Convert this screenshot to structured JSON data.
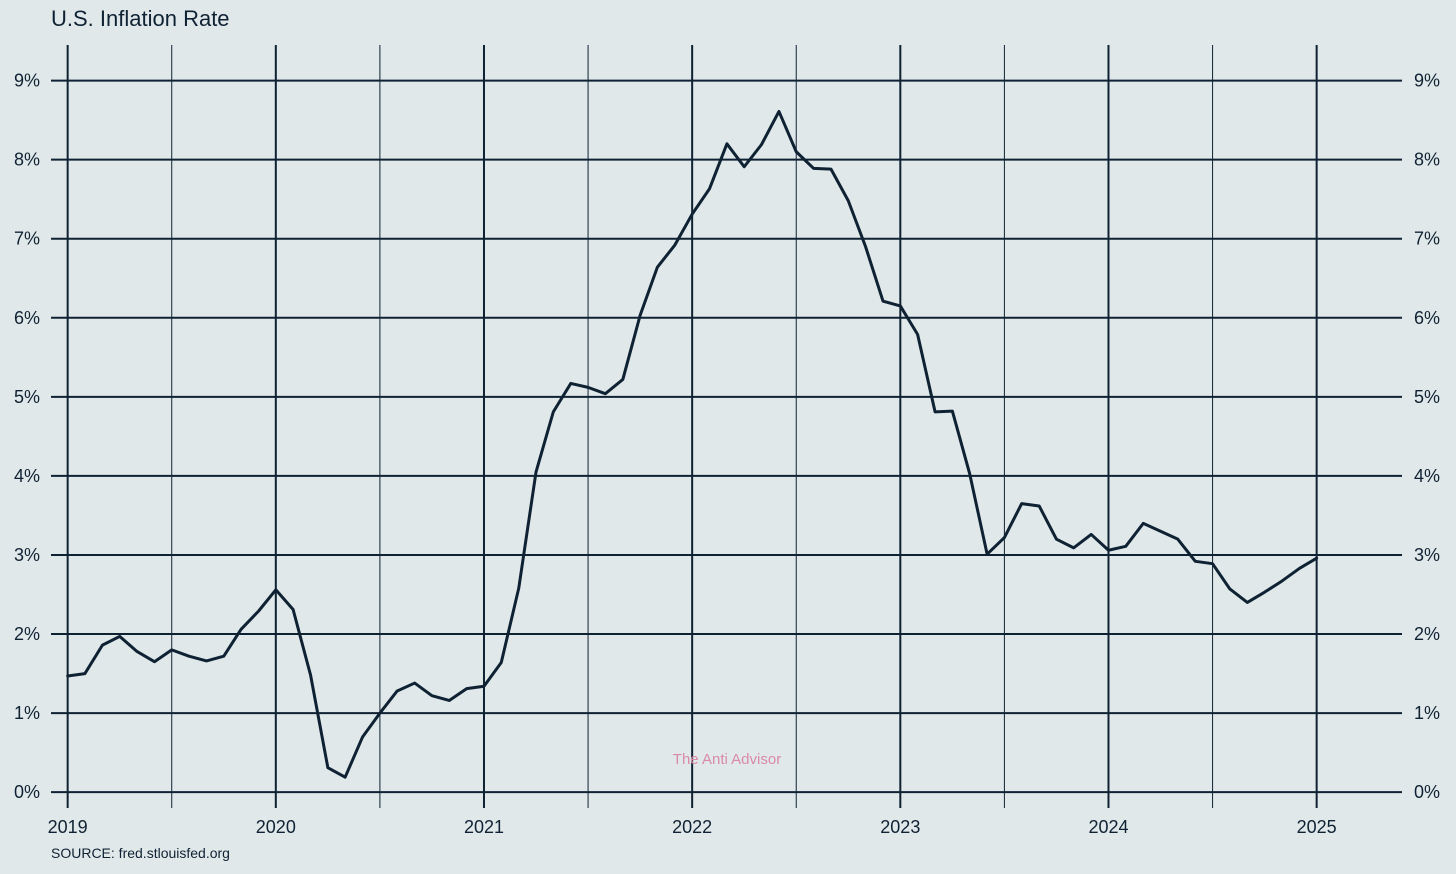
{
  "header": {
    "title": "U.S. Inflation Rate"
  },
  "footer": {
    "source": "SOURCE: fred.stlouisfed.org"
  },
  "watermark": "The Anti Advisor",
  "colors": {
    "background": "#e1e8ea",
    "line": "#0f2233",
    "watermark": "#d98aa8"
  },
  "chart_data": {
    "type": "line",
    "title": "U.S. Inflation Rate",
    "xlabel": "",
    "ylabel": "",
    "xlim": [
      2018.92,
      2025.41
    ],
    "ylim": [
      -0.2,
      9.45
    ],
    "y_ticks": [
      0,
      1,
      2,
      3,
      4,
      5,
      6,
      7,
      8,
      9
    ],
    "y_tick_labels": [
      "0%",
      "1%",
      "2%",
      "3%",
      "4%",
      "5%",
      "6%",
      "7%",
      "8%",
      "9%"
    ],
    "x_ticks": [
      2019,
      2020,
      2021,
      2022,
      2023,
      2024,
      2025
    ],
    "x_tick_labels": [
      "2019",
      "2020",
      "2021",
      "2022",
      "2023",
      "2024",
      "2025"
    ],
    "minor_x_gridlines": [
      2019.5,
      2020.5,
      2021.5,
      2022.5,
      2023.5,
      2024.5
    ],
    "grid": true,
    "y_axis_both_sides": true,
    "series": [
      {
        "x": [
          2019.0,
          2019.083,
          2019.167,
          2019.25,
          2019.333,
          2019.417,
          2019.5,
          2019.583,
          2019.667,
          2019.75,
          2019.833,
          2019.917,
          2020.0,
          2020.083,
          2020.167,
          2020.25,
          2020.333,
          2020.417,
          2020.5,
          2020.583,
          2020.667,
          2020.75,
          2020.833,
          2020.917,
          2021.0,
          2021.083,
          2021.167,
          2021.25,
          2021.333,
          2021.417,
          2021.5,
          2021.583,
          2021.667,
          2021.75,
          2021.833,
          2021.917,
          2022.0,
          2022.083,
          2022.167,
          2022.25,
          2022.333,
          2022.417,
          2022.5,
          2022.583,
          2022.667,
          2022.75,
          2022.833,
          2022.917,
          2023.0,
          2023.083,
          2023.167,
          2023.25,
          2023.333,
          2023.417,
          2023.5,
          2023.583,
          2023.667,
          2023.75,
          2023.833,
          2023.917,
          2024.0,
          2024.083,
          2024.167,
          2024.25,
          2024.333,
          2024.417,
          2024.5,
          2024.583,
          2024.667,
          2024.75,
          2024.833,
          2024.917,
          2025.0
        ],
        "values": [
          1.47,
          1.5,
          1.86,
          1.97,
          1.78,
          1.65,
          1.8,
          1.72,
          1.66,
          1.72,
          2.06,
          2.29,
          2.56,
          2.31,
          1.48,
          0.31,
          0.19,
          0.7,
          1.0,
          1.28,
          1.38,
          1.22,
          1.16,
          1.31,
          1.34,
          1.64,
          2.58,
          4.05,
          4.81,
          5.17,
          5.12,
          5.04,
          5.22,
          6.03,
          6.64,
          6.92,
          7.31,
          7.63,
          8.2,
          7.91,
          8.19,
          8.61,
          8.1,
          7.89,
          7.88,
          7.48,
          6.9,
          6.21,
          6.15,
          5.79,
          4.81,
          4.82,
          4.03,
          3.01,
          3.22,
          3.65,
          3.62,
          3.2,
          3.09,
          3.26,
          3.06,
          3.11,
          3.4,
          3.3,
          3.2,
          2.92,
          2.89,
          2.57,
          2.4,
          2.53,
          2.67,
          2.83,
          2.96
        ]
      }
    ]
  }
}
